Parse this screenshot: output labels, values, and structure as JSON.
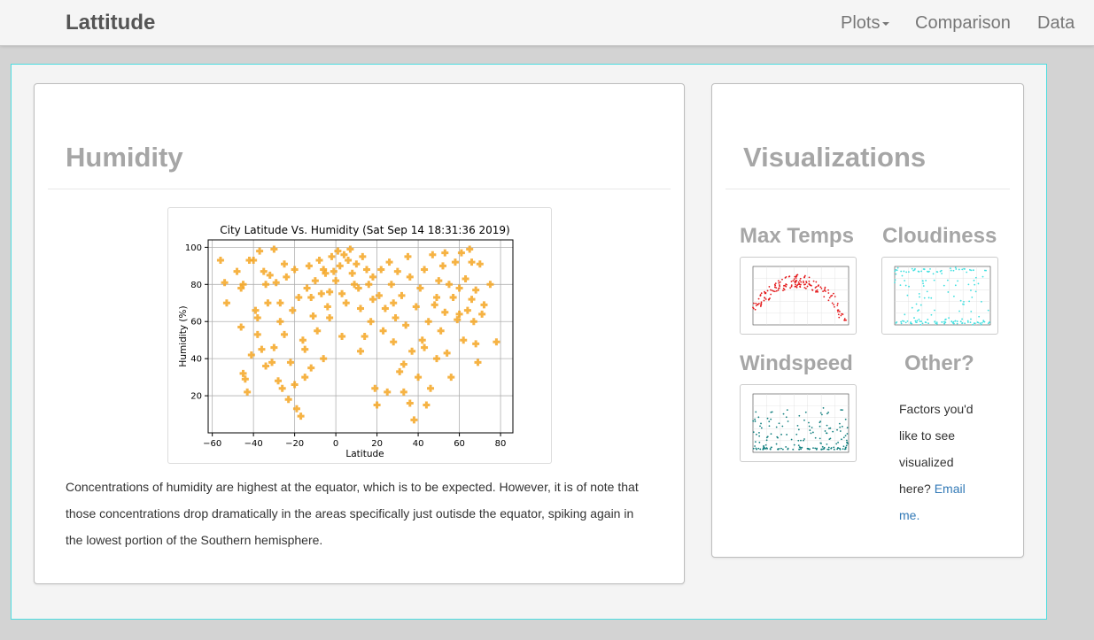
{
  "navbar": {
    "brand": "Lattitude",
    "links": [
      {
        "label": "Plots"
      },
      {
        "label": "Comparison"
      },
      {
        "label": "Data"
      }
    ]
  },
  "main": {
    "title": "Humidity",
    "description": "Concentrations of humidity are highest at the equator, which is to be expected. However, it is of note that those concentrations drop dramatically in the areas specifically just outisde the equator, spiking again in the lowest portion of the Southern hemisphere."
  },
  "sidebar": {
    "title": "Visualizations",
    "items": [
      {
        "label": "Max Temps",
        "color": "#e41a1c"
      },
      {
        "label": "Cloudiness",
        "color": "#40e0e0"
      },
      {
        "label": "Windspeed",
        "color": "#138080"
      }
    ],
    "other": {
      "title": "Other?",
      "text": "Factors you'd like to see visualized here?",
      "link_text": "Email me."
    }
  },
  "chart_data": {
    "type": "scatter",
    "title": "City Latitude Vs. Humidity (Sat Sep 14 18:31:36 2019)",
    "xlabel": "Latitude",
    "ylabel": "Humidity (%)",
    "xlim": [
      -62,
      86
    ],
    "ylim": [
      0,
      104
    ],
    "xticks": [
      -60,
      -40,
      -20,
      0,
      20,
      40,
      60,
      80
    ],
    "yticks": [
      20,
      40,
      60,
      80,
      100
    ],
    "grid": true,
    "marker_color": "#f5a623",
    "points": [
      [
        -56,
        93
      ],
      [
        -54,
        81
      ],
      [
        -53,
        70
      ],
      [
        -48,
        87
      ],
      [
        -46,
        78
      ],
      [
        -46,
        57
      ],
      [
        -45,
        32
      ],
      [
        -44,
        29
      ],
      [
        -43,
        22
      ],
      [
        -42,
        93
      ],
      [
        -41,
        42
      ],
      [
        -40,
        93
      ],
      [
        -39,
        66
      ],
      [
        -38,
        62
      ],
      [
        -37,
        98
      ],
      [
        -36,
        45
      ],
      [
        -35,
        87
      ],
      [
        -34,
        80
      ],
      [
        -34,
        36
      ],
      [
        -33,
        70
      ],
      [
        -32,
        85
      ],
      [
        -31,
        38
      ],
      [
        -30,
        99
      ],
      [
        -29,
        81
      ],
      [
        -28,
        28
      ],
      [
        -27,
        70
      ],
      [
        -26,
        24
      ],
      [
        -25,
        91
      ],
      [
        -24,
        84
      ],
      [
        -23,
        18
      ],
      [
        -22,
        38
      ],
      [
        -21,
        66
      ],
      [
        -20,
        88
      ],
      [
        -20,
        26
      ],
      [
        -19,
        13
      ],
      [
        -18,
        73
      ],
      [
        -17,
        9
      ],
      [
        -16,
        50
      ],
      [
        -15,
        45
      ],
      [
        -14,
        78
      ],
      [
        -13,
        90
      ],
      [
        -12,
        35
      ],
      [
        -11,
        63
      ],
      [
        -10,
        82
      ],
      [
        -9,
        55
      ],
      [
        -8,
        93
      ],
      [
        -7,
        75
      ],
      [
        -6,
        40
      ],
      [
        -5,
        86
      ],
      [
        -4,
        68
      ],
      [
        -3,
        76
      ],
      [
        -2,
        95
      ],
      [
        -1,
        87
      ],
      [
        0,
        82
      ],
      [
        1,
        98
      ],
      [
        2,
        90
      ],
      [
        3,
        75
      ],
      [
        4,
        96
      ],
      [
        5,
        70
      ],
      [
        6,
        93
      ],
      [
        7,
        99
      ],
      [
        8,
        86
      ],
      [
        9,
        80
      ],
      [
        10,
        91
      ],
      [
        11,
        78
      ],
      [
        12,
        67
      ],
      [
        13,
        95
      ],
      [
        14,
        52
      ],
      [
        15,
        88
      ],
      [
        16,
        80
      ],
      [
        17,
        60
      ],
      [
        18,
        84
      ],
      [
        19,
        24
      ],
      [
        20,
        15
      ],
      [
        21,
        74
      ],
      [
        22,
        88
      ],
      [
        23,
        55
      ],
      [
        24,
        67
      ],
      [
        25,
        22
      ],
      [
        26,
        92
      ],
      [
        27,
        80
      ],
      [
        28,
        49
      ],
      [
        29,
        62
      ],
      [
        30,
        87
      ],
      [
        31,
        33
      ],
      [
        32,
        74
      ],
      [
        33,
        22
      ],
      [
        34,
        58
      ],
      [
        35,
        95
      ],
      [
        36,
        84
      ],
      [
        37,
        44
      ],
      [
        38,
        7
      ],
      [
        39,
        68
      ],
      [
        40,
        30
      ],
      [
        41,
        78
      ],
      [
        42,
        50
      ],
      [
        43,
        88
      ],
      [
        44,
        15
      ],
      [
        45,
        60
      ],
      [
        46,
        24
      ],
      [
        47,
        96
      ],
      [
        48,
        69
      ],
      [
        49,
        40
      ],
      [
        50,
        82
      ],
      [
        51,
        55
      ],
      [
        52,
        90
      ],
      [
        53,
        65
      ],
      [
        54,
        43
      ],
      [
        55,
        80
      ],
      [
        56,
        30
      ],
      [
        57,
        73
      ],
      [
        58,
        92
      ],
      [
        59,
        61
      ],
      [
        60,
        78
      ],
      [
        61,
        97
      ],
      [
        62,
        50
      ],
      [
        63,
        83
      ],
      [
        64,
        66
      ],
      [
        65,
        99
      ],
      [
        66,
        72
      ],
      [
        67,
        60
      ],
      [
        68,
        77
      ],
      [
        69,
        38
      ],
      [
        70,
        91
      ],
      [
        71,
        64
      ],
      [
        72,
        69
      ],
      [
        75,
        80
      ],
      [
        78,
        49
      ],
      [
        -45,
        80
      ],
      [
        -38,
        53
      ],
      [
        -30,
        46
      ],
      [
        -27,
        60
      ],
      [
        -25,
        53
      ],
      [
        -15,
        30
      ],
      [
        -12,
        73
      ],
      [
        -6,
        88
      ],
      [
        -3,
        62
      ],
      [
        3,
        52
      ],
      [
        12,
        44
      ],
      [
        18,
        72
      ],
      [
        28,
        70
      ],
      [
        33,
        37
      ],
      [
        36,
        16
      ],
      [
        43,
        46
      ],
      [
        49,
        73
      ],
      [
        53,
        97
      ],
      [
        60,
        64
      ],
      [
        66,
        92
      ],
      [
        68,
        48
      ]
    ]
  }
}
